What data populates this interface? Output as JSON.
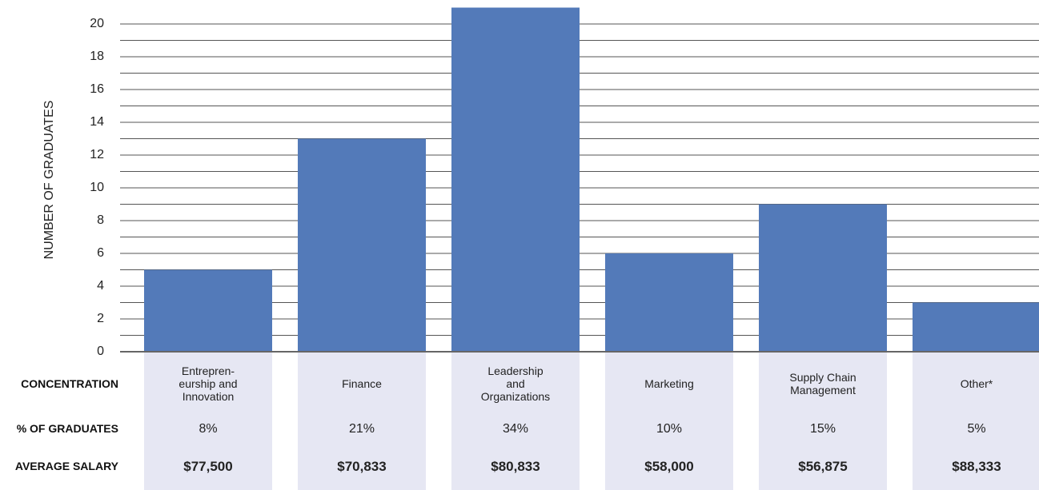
{
  "chart_data": {
    "type": "bar",
    "y_label": "NUMBER OF GRADUATES",
    "categories": [
      "Entrepren-\neurship and\nInnovation",
      "Finance",
      "Leadership\nand\nOrganizations",
      "Marketing",
      "Supply Chain\nManagement",
      "Other*"
    ],
    "values": [
      5,
      13,
      21,
      6,
      9,
      3
    ],
    "color": "#537ab9",
    "ylim": [
      0,
      21
    ],
    "yticks": [
      0,
      2,
      4,
      6,
      8,
      10,
      12,
      14,
      16,
      18,
      20
    ],
    "minor_yticks": [
      1,
      3,
      5,
      7,
      9,
      11,
      13,
      15,
      17,
      19
    ],
    "grid": true,
    "table": {
      "row_labels": [
        "CONCENTRATION",
        "% OF GRADUATES",
        "AVERAGE SALARY"
      ],
      "percent": [
        "8%",
        "21%",
        "34%",
        "10%",
        "15%",
        "5%"
      ],
      "salary": [
        "$77,500",
        "$70,833",
        "$80,833",
        "$58,000",
        "$56,875",
        "$88,333"
      ]
    }
  }
}
